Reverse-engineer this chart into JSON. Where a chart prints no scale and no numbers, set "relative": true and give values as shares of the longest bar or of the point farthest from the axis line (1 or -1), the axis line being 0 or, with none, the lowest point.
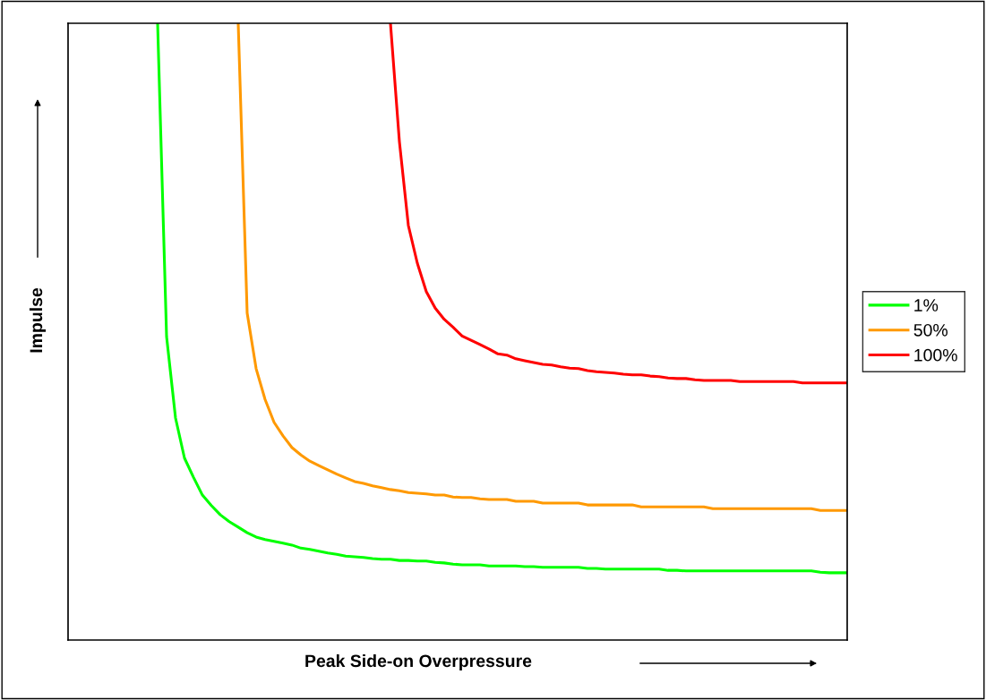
{
  "chart_data": {
    "type": "line",
    "relative": true,
    "xlabel": "Peak Side-on Overpressure",
    "ylabel": "Impulse",
    "legend": "right",
    "grid": false,
    "marker": "none",
    "line_style": "solid",
    "categories": [
      null,
      null,
      null,
      null,
      null,
      null,
      null,
      null,
      null,
      null,
      null,
      null,
      null,
      null,
      null,
      null,
      null,
      null,
      null,
      null,
      null,
      null,
      null,
      null,
      null,
      null,
      null,
      null,
      null,
      null,
      null,
      null,
      null,
      null,
      null,
      null,
      null,
      null,
      null,
      null,
      null,
      null,
      null,
      null,
      null,
      null,
      null,
      null,
      null,
      null,
      null,
      null,
      null,
      null,
      null,
      null,
      null,
      null,
      null,
      null,
      null,
      null,
      null,
      null,
      null,
      null,
      null,
      null,
      null,
      null,
      null,
      null,
      null,
      null,
      null,
      null,
      null,
      null,
      null,
      null,
      null,
      null,
      null,
      null,
      null,
      null,
      null,
      null
    ],
    "series": [
      {
        "name": "1%",
        "color": "#00ff00",
        "values": [
          null,
          null,
          null,
          null,
          null,
          null,
          null,
          null,
          null,
          null,
          1.0,
          0.492,
          0.36,
          0.295,
          0.264,
          0.235,
          0.218,
          0.203,
          0.192,
          0.183,
          0.174,
          0.167,
          0.163,
          0.16,
          0.157,
          0.154,
          0.149,
          0.147,
          0.144,
          0.141,
          0.139,
          0.136,
          0.135,
          0.134,
          0.132,
          0.131,
          0.131,
          0.129,
          0.129,
          0.128,
          0.128,
          0.126,
          0.125,
          0.123,
          0.122,
          0.122,
          0.122,
          0.12,
          0.12,
          0.12,
          0.12,
          0.119,
          0.119,
          0.118,
          0.118,
          0.118,
          0.118,
          0.118,
          0.116,
          0.116,
          0.115,
          0.115,
          0.115,
          0.115,
          0.115,
          0.115,
          0.115,
          0.113,
          0.113,
          0.112,
          0.112,
          0.112,
          0.112,
          0.112,
          0.112,
          0.112,
          0.112,
          0.112,
          0.112,
          0.112,
          0.112,
          0.112,
          0.112,
          0.112,
          0.11,
          0.109,
          0.109,
          0.109
        ]
      },
      {
        "name": "50%",
        "color": "#ff9900",
        "values": [
          null,
          null,
          null,
          null,
          null,
          null,
          null,
          null,
          null,
          null,
          null,
          null,
          null,
          null,
          null,
          null,
          null,
          null,
          null,
          1.0,
          0.53,
          0.44,
          0.39,
          0.353,
          0.331,
          0.312,
          0.3,
          0.29,
          0.283,
          0.276,
          0.269,
          0.263,
          0.257,
          0.254,
          0.25,
          0.247,
          0.244,
          0.242,
          0.239,
          0.238,
          0.237,
          0.235,
          0.235,
          0.232,
          0.231,
          0.231,
          0.229,
          0.228,
          0.228,
          0.228,
          0.225,
          0.225,
          0.225,
          0.222,
          0.222,
          0.222,
          0.222,
          0.222,
          0.219,
          0.219,
          0.219,
          0.219,
          0.219,
          0.219,
          0.216,
          0.216,
          0.216,
          0.216,
          0.216,
          0.216,
          0.216,
          0.216,
          0.213,
          0.213,
          0.213,
          0.213,
          0.213,
          0.213,
          0.213,
          0.213,
          0.213,
          0.213,
          0.213,
          0.213,
          0.21,
          0.21,
          0.21,
          0.21
        ]
      },
      {
        "name": "100%",
        "color": "#ff0000",
        "values": [
          null,
          null,
          null,
          null,
          null,
          null,
          null,
          null,
          null,
          null,
          null,
          null,
          null,
          null,
          null,
          null,
          null,
          null,
          null,
          null,
          null,
          null,
          null,
          null,
          null,
          null,
          null,
          null,
          null,
          null,
          null,
          null,
          null,
          null,
          null,
          null,
          1.0,
          0.808,
          0.672,
          0.611,
          0.565,
          0.538,
          0.52,
          0.507,
          0.493,
          0.486,
          0.479,
          0.472,
          0.464,
          0.462,
          0.456,
          0.453,
          0.45,
          0.447,
          0.446,
          0.443,
          0.441,
          0.44,
          0.437,
          0.435,
          0.434,
          0.433,
          0.431,
          0.43,
          0.43,
          0.428,
          0.427,
          0.425,
          0.424,
          0.424,
          0.422,
          0.421,
          0.421,
          0.421,
          0.421,
          0.419,
          0.419,
          0.419,
          0.419,
          0.419,
          0.419,
          0.419,
          0.417,
          0.417,
          0.417,
          0.417,
          0.417,
          0.417
        ]
      }
    ]
  }
}
